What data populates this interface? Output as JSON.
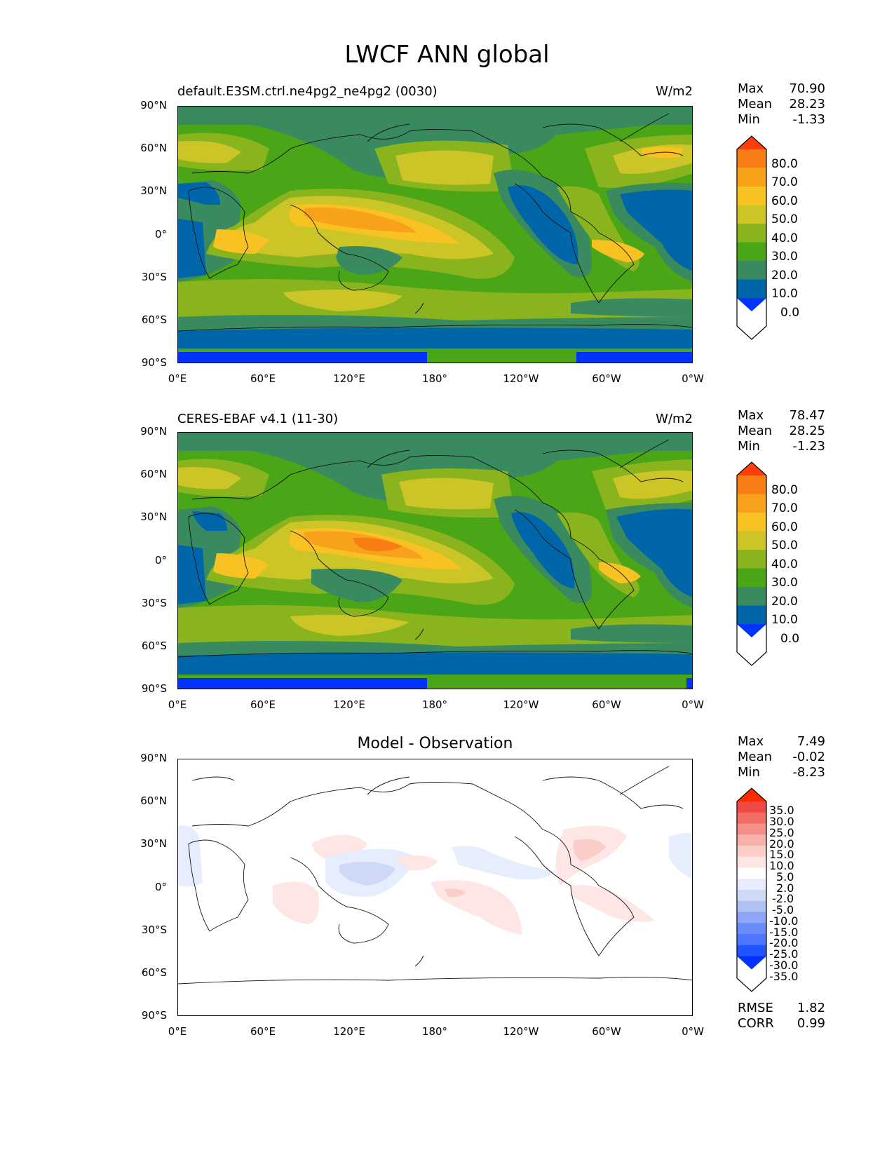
{
  "figure": {
    "title": "LWCF ANN global"
  },
  "panels": [
    {
      "title_left": "default.E3SM.ctrl.ne4pg2_ne4pg2 (0030)",
      "title_right": "W/m2",
      "stats": {
        "max_label": "Max",
        "max": "70.90",
        "mean_label": "Mean",
        "mean": "28.23",
        "min_label": "Min",
        "min": "-1.33"
      },
      "colorbar_labels": [
        "80.0",
        "70.0",
        "60.0",
        "50.0",
        "40.0",
        "30.0",
        "20.0",
        "10.0",
        "0.0"
      ]
    },
    {
      "title_left": "CERES-EBAF v4.1 (11-30)",
      "title_right": "W/m2",
      "stats": {
        "max_label": "Max",
        "max": "78.47",
        "mean_label": "Mean",
        "mean": "28.25",
        "min_label": "Min",
        "min": "-1.23"
      },
      "colorbar_labels": [
        "80.0",
        "70.0",
        "60.0",
        "50.0",
        "40.0",
        "30.0",
        "20.0",
        "10.0",
        "0.0"
      ]
    },
    {
      "title_center": "Model - Observation",
      "stats": {
        "max_label": "Max",
        "max": "7.49",
        "mean_label": "Mean",
        "mean": "-0.02",
        "min_label": "Min",
        "min": "-8.23"
      },
      "colorbar_labels": [
        "35.0",
        "30.0",
        "25.0",
        "20.0",
        "15.0",
        "10.0",
        "5.0",
        "2.0",
        "-2.0",
        "-5.0",
        "-10.0",
        "-15.0",
        "-20.0",
        "-25.0",
        "-30.0",
        "-35.0"
      ]
    }
  ],
  "axes": {
    "lat_ticks": [
      "90°N",
      "60°N",
      "30°N",
      "0°",
      "30°S",
      "60°S",
      "90°S"
    ],
    "lon_ticks": [
      "0°E",
      "60°E",
      "120°E",
      "180°",
      "120°W",
      "60°W",
      "0°W"
    ]
  },
  "metrics": {
    "rmse_label": "RMSE",
    "rmse": "1.82",
    "corr_label": "CORR",
    "corr": "0.99"
  },
  "colors": {
    "field_levels": [
      "#0033ff",
      "#0066aa",
      "#3a8a60",
      "#4aa517",
      "#8ab41e",
      "#cbc527",
      "#f9c223",
      "#f8a21c",
      "#f87d15",
      "#ff3d0d"
    ],
    "diff_levels": [
      "#0033ff",
      "#2255ff",
      "#4d77ff",
      "#6a8cf8",
      "#8ea6f5",
      "#b0c2f3",
      "#cdd9f7",
      "#e6edfc",
      "#ffffff",
      "#fde6e4",
      "#fbcdc8",
      "#f8b1aa",
      "#f59089",
      "#f26d66",
      "#ee4a43",
      "#ff2a00"
    ]
  }
}
